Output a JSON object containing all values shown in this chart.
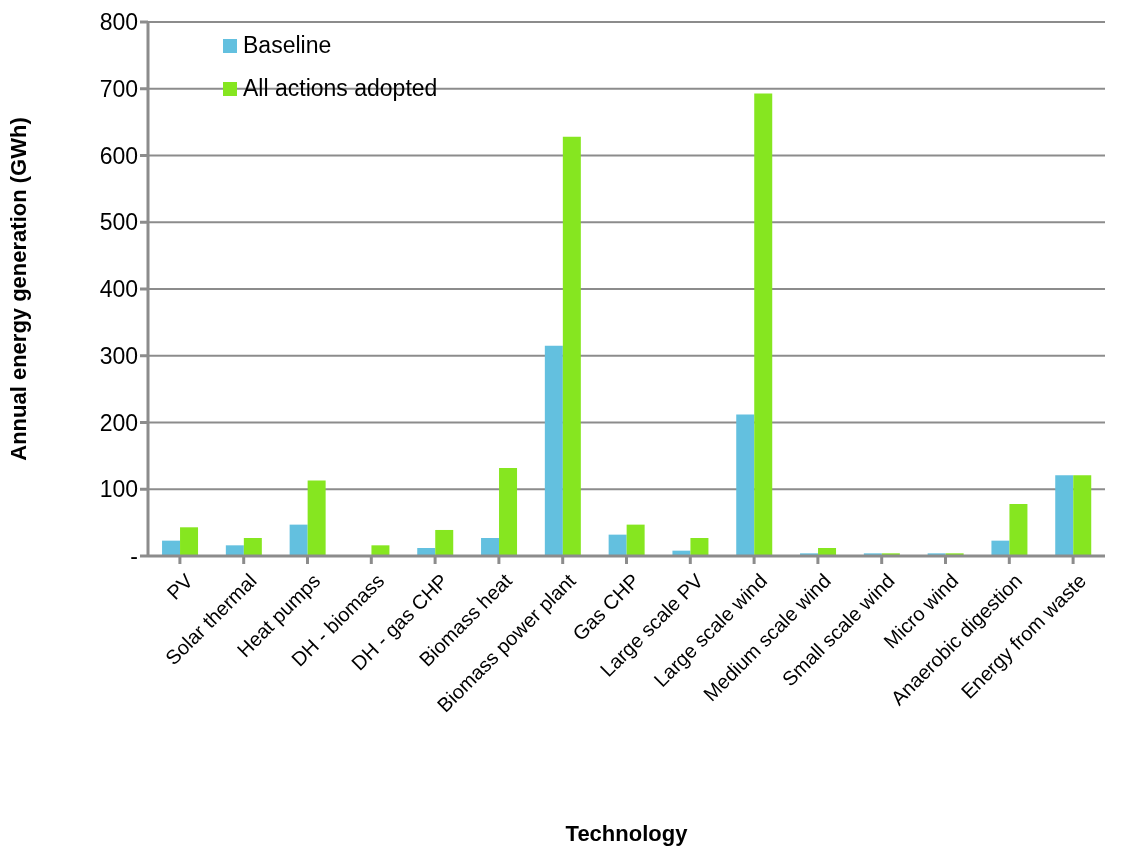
{
  "chart_data": {
    "type": "bar",
    "xlabel": "Technology",
    "ylabel": "Annual energy generation (GWh)",
    "categories": [
      "PV",
      "Solar thermal",
      "Heat pumps",
      "DH - biomass",
      "DH - gas CHP",
      "Biomass heat",
      "Biomass power plant",
      "Gas CHP",
      "Large scale PV",
      "Large scale wind",
      "Medium scale wind",
      "Small scale wind",
      "Micro wind",
      "Anaerobic digestion",
      "Energy from waste"
    ],
    "series": [
      {
        "name": "Baseline",
        "color": "#63c0df",
        "values": [
          23,
          16,
          47,
          0,
          12,
          27,
          315,
          32,
          8,
          212,
          4,
          4,
          4,
          23,
          121
        ]
      },
      {
        "name": "All actions adopted",
        "color": "#86e620",
        "values": [
          43,
          27,
          113,
          16,
          39,
          132,
          628,
          47,
          27,
          693,
          12,
          4,
          4,
          78,
          121
        ]
      }
    ],
    "ylim": [
      0,
      800
    ],
    "yticks": [
      {
        "value": 0,
        "label": "-"
      },
      100,
      200,
      300,
      400,
      500,
      600,
      700,
      800
    ],
    "grid": "y",
    "legend": "top left"
  }
}
